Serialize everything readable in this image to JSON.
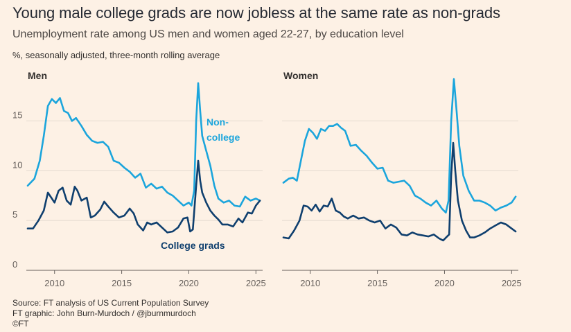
{
  "header": {
    "title": "Young male college grads are now jobless at the same rate as non-grads",
    "subtitle": "Unemployment rate among US men and women aged 22-27, by education level",
    "units": "%, seasonally adjusted, three-month rolling average"
  },
  "footer": {
    "source": "Source: FT analysis of US Current Population Survey",
    "credit": "FT graphic: John Burn-Murdoch / @jburnmurdoch",
    "copyright": "©FT"
  },
  "colors": {
    "background": "#fdf1e5",
    "non_college": "#1ba5dc",
    "college": "#0f3f6e",
    "axis": "#66605c",
    "grid": "#e3d9cf"
  },
  "chart_data": [
    {
      "type": "line",
      "panel": "Men",
      "xlim": [
        2008.0,
        2025.5
      ],
      "ylim": [
        0,
        19
      ],
      "yticks": [
        0,
        5,
        10,
        15
      ],
      "xticks": [
        2010,
        2015,
        2020,
        2025
      ],
      "annotations": [
        "Non-",
        "college",
        "College grads"
      ],
      "series": [
        {
          "name": "Non-college",
          "color": "#1ba5dc",
          "points": [
            [
              2008.0,
              8.5
            ],
            [
              2008.5,
              9.2
            ],
            [
              2008.9,
              11.0
            ],
            [
              2009.2,
              13.5
            ],
            [
              2009.5,
              16.5
            ],
            [
              2009.8,
              17.2
            ],
            [
              2010.1,
              16.8
            ],
            [
              2010.4,
              17.3
            ],
            [
              2010.7,
              16.0
            ],
            [
              2011.0,
              15.8
            ],
            [
              2011.3,
              15.0
            ],
            [
              2011.6,
              15.3
            ],
            [
              2012.0,
              14.5
            ],
            [
              2012.4,
              13.6
            ],
            [
              2012.8,
              13.0
            ],
            [
              2013.2,
              12.8
            ],
            [
              2013.6,
              12.9
            ],
            [
              2014.0,
              12.4
            ],
            [
              2014.4,
              11.0
            ],
            [
              2014.8,
              10.8
            ],
            [
              2015.2,
              10.3
            ],
            [
              2015.6,
              9.9
            ],
            [
              2016.0,
              9.3
            ],
            [
              2016.4,
              9.7
            ],
            [
              2016.8,
              8.3
            ],
            [
              2017.2,
              8.7
            ],
            [
              2017.6,
              8.2
            ],
            [
              2018.0,
              8.4
            ],
            [
              2018.4,
              7.8
            ],
            [
              2018.8,
              7.5
            ],
            [
              2019.2,
              7.0
            ],
            [
              2019.6,
              6.5
            ],
            [
              2020.0,
              6.8
            ],
            [
              2020.2,
              6.5
            ],
            [
              2020.4,
              8.0
            ],
            [
              2020.55,
              15.0
            ],
            [
              2020.7,
              18.8
            ],
            [
              2020.85,
              16.0
            ],
            [
              2021.0,
              13.5
            ],
            [
              2021.3,
              12.0
            ],
            [
              2021.6,
              10.5
            ],
            [
              2021.9,
              8.5
            ],
            [
              2022.2,
              7.2
            ],
            [
              2022.6,
              6.8
            ],
            [
              2023.0,
              7.0
            ],
            [
              2023.4,
              6.5
            ],
            [
              2023.8,
              6.4
            ],
            [
              2024.2,
              7.4
            ],
            [
              2024.6,
              7.0
            ],
            [
              2025.0,
              7.2
            ],
            [
              2025.3,
              7.0
            ]
          ]
        },
        {
          "name": "College grads",
          "color": "#0f3f6e",
          "points": [
            [
              2008.0,
              4.2
            ],
            [
              2008.4,
              4.2
            ],
            [
              2008.8,
              5.0
            ],
            [
              2009.2,
              6.0
            ],
            [
              2009.5,
              7.8
            ],
            [
              2009.8,
              7.2
            ],
            [
              2010.0,
              6.8
            ],
            [
              2010.3,
              8.0
            ],
            [
              2010.6,
              8.3
            ],
            [
              2010.9,
              7.0
            ],
            [
              2011.2,
              6.6
            ],
            [
              2011.5,
              8.4
            ],
            [
              2011.7,
              8.0
            ],
            [
              2012.0,
              7.0
            ],
            [
              2012.4,
              7.3
            ],
            [
              2012.7,
              5.3
            ],
            [
              2013.0,
              5.5
            ],
            [
              2013.4,
              6.1
            ],
            [
              2013.7,
              6.9
            ],
            [
              2014.0,
              6.4
            ],
            [
              2014.4,
              5.8
            ],
            [
              2014.8,
              5.3
            ],
            [
              2015.2,
              5.5
            ],
            [
              2015.6,
              6.2
            ],
            [
              2015.9,
              5.7
            ],
            [
              2016.2,
              4.6
            ],
            [
              2016.6,
              4.0
            ],
            [
              2016.9,
              4.8
            ],
            [
              2017.2,
              4.6
            ],
            [
              2017.6,
              4.8
            ],
            [
              2018.0,
              4.3
            ],
            [
              2018.4,
              3.8
            ],
            [
              2018.8,
              3.9
            ],
            [
              2019.2,
              4.3
            ],
            [
              2019.6,
              5.2
            ],
            [
              2019.9,
              5.3
            ],
            [
              2020.1,
              3.9
            ],
            [
              2020.3,
              4.1
            ],
            [
              2020.55,
              8.5
            ],
            [
              2020.7,
              11.0
            ],
            [
              2020.85,
              9.0
            ],
            [
              2021.0,
              7.8
            ],
            [
              2021.3,
              6.8
            ],
            [
              2021.6,
              6.0
            ],
            [
              2021.9,
              5.5
            ],
            [
              2022.2,
              5.1
            ],
            [
              2022.5,
              4.6
            ],
            [
              2022.9,
              4.6
            ],
            [
              2023.3,
              4.4
            ],
            [
              2023.7,
              5.2
            ],
            [
              2024.0,
              4.8
            ],
            [
              2024.4,
              5.8
            ],
            [
              2024.7,
              5.7
            ],
            [
              2025.0,
              6.5
            ],
            [
              2025.3,
              7.0
            ]
          ]
        }
      ]
    },
    {
      "type": "line",
      "panel": "Women",
      "xlim": [
        2008.0,
        2025.5
      ],
      "ylim": [
        0,
        19
      ],
      "yticks": [
        0,
        5,
        10,
        15
      ],
      "xticks": [
        2010,
        2015,
        2020,
        2025
      ],
      "series": [
        {
          "name": "Non-college",
          "color": "#1ba5dc",
          "points": [
            [
              2008.0,
              8.8
            ],
            [
              2008.4,
              9.2
            ],
            [
              2008.7,
              9.3
            ],
            [
              2009.0,
              9.0
            ],
            [
              2009.3,
              11.0
            ],
            [
              2009.6,
              13.0
            ],
            [
              2009.9,
              14.2
            ],
            [
              2010.2,
              13.8
            ],
            [
              2010.5,
              13.2
            ],
            [
              2010.8,
              14.2
            ],
            [
              2011.1,
              14.0
            ],
            [
              2011.4,
              14.5
            ],
            [
              2011.7,
              14.5
            ],
            [
              2012.0,
              14.7
            ],
            [
              2012.3,
              14.3
            ],
            [
              2012.6,
              14.0
            ],
            [
              2013.0,
              12.5
            ],
            [
              2013.4,
              12.6
            ],
            [
              2013.8,
              12.0
            ],
            [
              2014.2,
              11.5
            ],
            [
              2014.6,
              10.8
            ],
            [
              2015.0,
              10.2
            ],
            [
              2015.4,
              10.3
            ],
            [
              2015.8,
              9.0
            ],
            [
              2016.2,
              8.8
            ],
            [
              2016.6,
              8.9
            ],
            [
              2017.0,
              9.0
            ],
            [
              2017.4,
              8.5
            ],
            [
              2017.8,
              7.5
            ],
            [
              2018.2,
              7.2
            ],
            [
              2018.6,
              6.8
            ],
            [
              2019.0,
              6.5
            ],
            [
              2019.4,
              7.0
            ],
            [
              2019.8,
              6.2
            ],
            [
              2020.1,
              5.8
            ],
            [
              2020.3,
              7.0
            ],
            [
              2020.5,
              15.0
            ],
            [
              2020.7,
              19.2
            ],
            [
              2020.9,
              16.0
            ],
            [
              2021.1,
              12.5
            ],
            [
              2021.4,
              9.5
            ],
            [
              2021.8,
              8.0
            ],
            [
              2022.2,
              7.0
            ],
            [
              2022.6,
              7.0
            ],
            [
              2023.0,
              6.8
            ],
            [
              2023.4,
              6.5
            ],
            [
              2023.8,
              6.0
            ],
            [
              2024.2,
              6.3
            ],
            [
              2024.6,
              6.5
            ],
            [
              2025.0,
              6.8
            ],
            [
              2025.3,
              7.4
            ]
          ]
        },
        {
          "name": "College grads",
          "color": "#0f3f6e",
          "points": [
            [
              2008.0,
              3.3
            ],
            [
              2008.4,
              3.2
            ],
            [
              2008.8,
              4.0
            ],
            [
              2009.2,
              5.0
            ],
            [
              2009.5,
              6.5
            ],
            [
              2009.8,
              6.4
            ],
            [
              2010.1,
              6.0
            ],
            [
              2010.4,
              6.6
            ],
            [
              2010.7,
              5.9
            ],
            [
              2011.0,
              6.5
            ],
            [
              2011.3,
              6.4
            ],
            [
              2011.6,
              7.2
            ],
            [
              2011.9,
              6.0
            ],
            [
              2012.2,
              5.8
            ],
            [
              2012.5,
              5.4
            ],
            [
              2012.8,
              5.2
            ],
            [
              2013.2,
              5.5
            ],
            [
              2013.6,
              5.2
            ],
            [
              2014.0,
              5.3
            ],
            [
              2014.4,
              5.0
            ],
            [
              2014.8,
              4.8
            ],
            [
              2015.2,
              5.0
            ],
            [
              2015.6,
              4.2
            ],
            [
              2016.0,
              4.6
            ],
            [
              2016.4,
              4.3
            ],
            [
              2016.8,
              3.6
            ],
            [
              2017.2,
              3.5
            ],
            [
              2017.6,
              3.8
            ],
            [
              2018.0,
              3.6
            ],
            [
              2018.4,
              3.5
            ],
            [
              2018.8,
              3.4
            ],
            [
              2019.2,
              3.6
            ],
            [
              2019.6,
              3.2
            ],
            [
              2019.9,
              3.0
            ],
            [
              2020.2,
              3.4
            ],
            [
              2020.35,
              3.6
            ],
            [
              2020.5,
              9.5
            ],
            [
              2020.65,
              12.8
            ],
            [
              2020.8,
              10.0
            ],
            [
              2021.0,
              7.0
            ],
            [
              2021.3,
              5.0
            ],
            [
              2021.6,
              4.0
            ],
            [
              2021.9,
              3.3
            ],
            [
              2022.2,
              3.3
            ],
            [
              2022.6,
              3.5
            ],
            [
              2023.0,
              3.8
            ],
            [
              2023.4,
              4.2
            ],
            [
              2023.8,
              4.5
            ],
            [
              2024.2,
              4.8
            ],
            [
              2024.6,
              4.6
            ],
            [
              2025.0,
              4.2
            ],
            [
              2025.3,
              3.9
            ]
          ]
        }
      ]
    }
  ]
}
